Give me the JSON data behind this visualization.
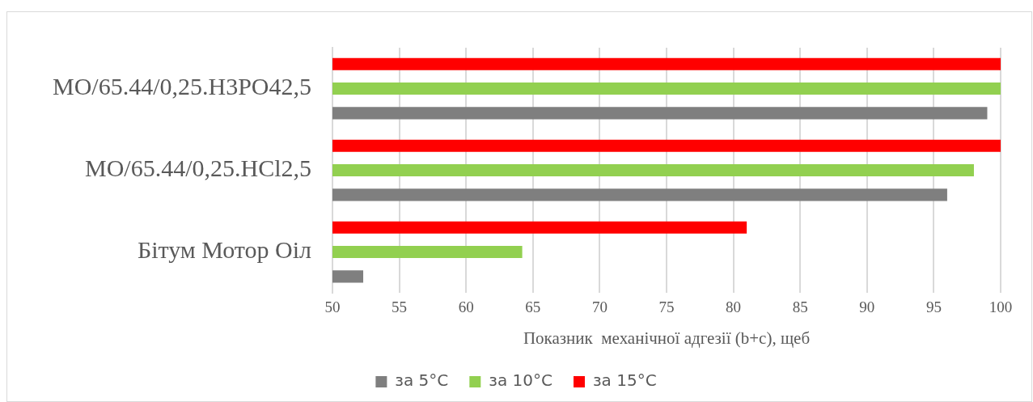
{
  "chart_data": {
    "type": "bar",
    "orientation": "horizontal",
    "xlabel": "Показник  механічної адгезії (b+c), щеб",
    "categories": [
      "MO/65.44/0,25.H3PO42,5",
      "MO/65.44/0,25.HCl2,5",
      "Бітум Мотор Оіл"
    ],
    "series": [
      {
        "name": "за 5°C",
        "color": "#7f7f7f",
        "values": [
          99,
          96,
          52.3
        ]
      },
      {
        "name": "за 10°C",
        "color": "#92d050",
        "values": [
          100,
          98,
          64.2
        ]
      },
      {
        "name": "за 15°C",
        "color": "#ff0000",
        "values": [
          100,
          100,
          81
        ]
      }
    ],
    "xlim": [
      50,
      100
    ],
    "xticks": [
      50,
      55,
      60,
      65,
      70,
      75,
      80,
      85,
      90,
      95,
      100
    ],
    "grid": "x",
    "legend": "bottom"
  }
}
